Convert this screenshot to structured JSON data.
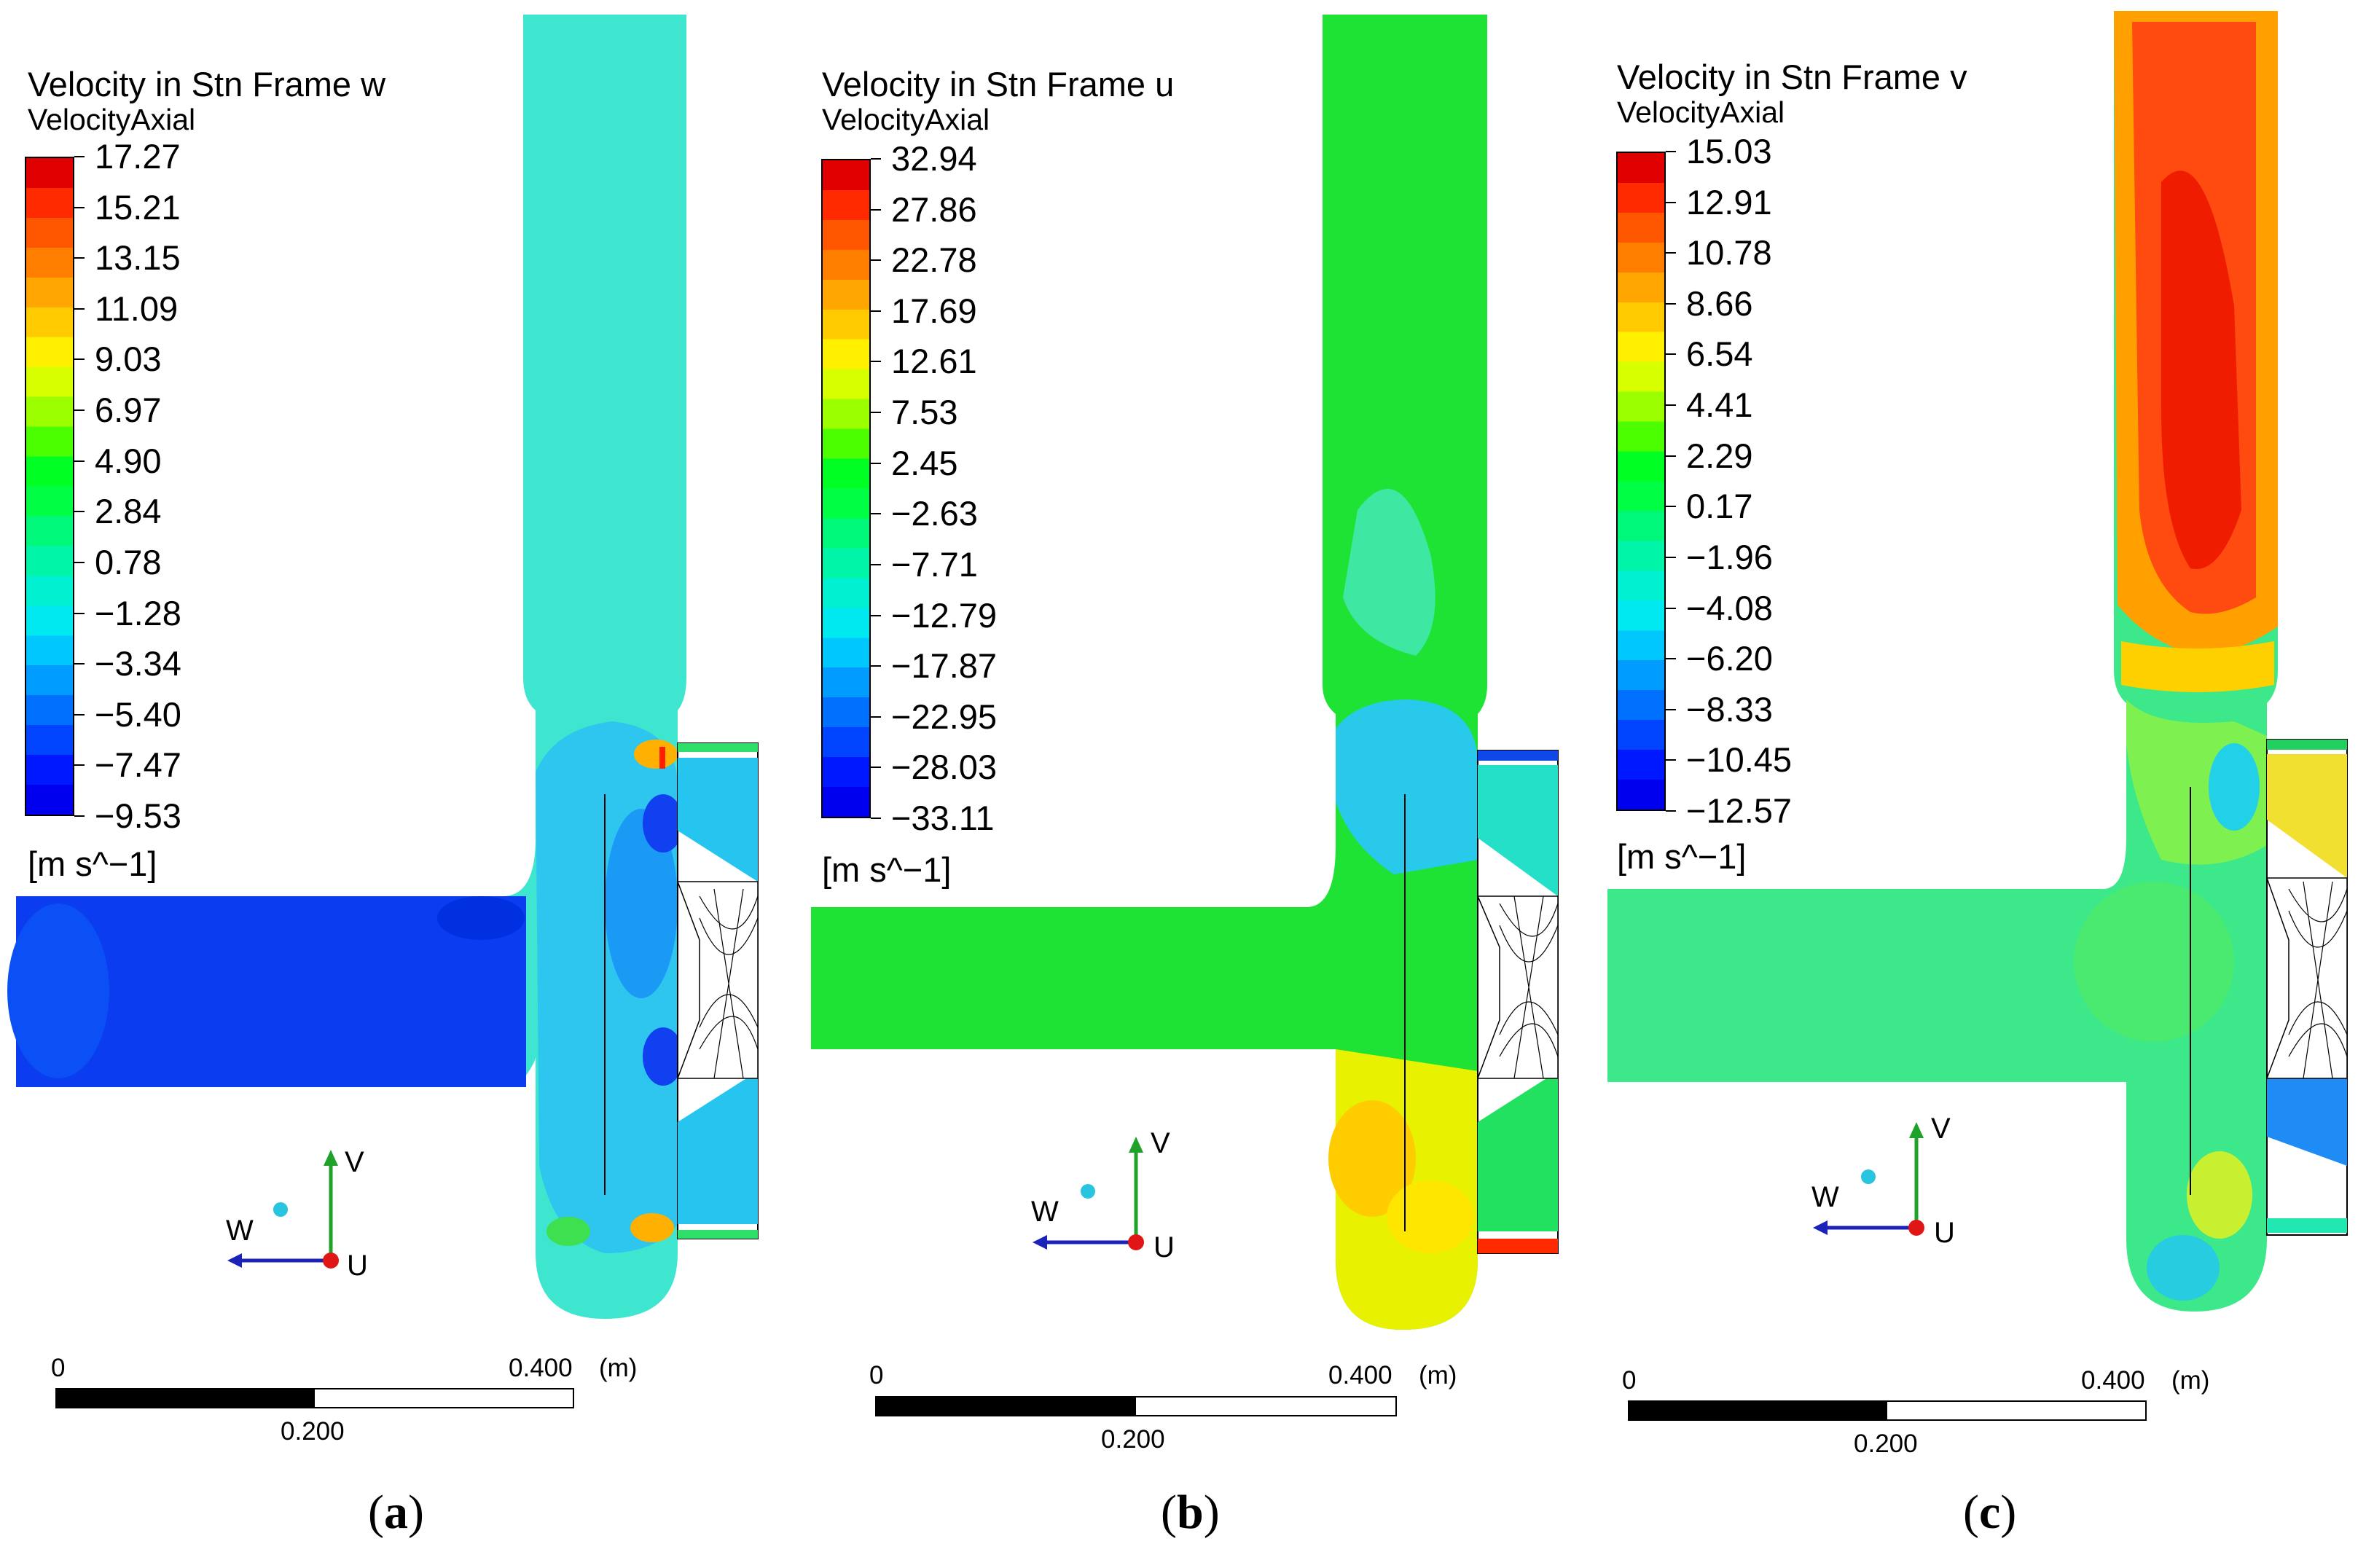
{
  "panels": [
    {
      "id": "a",
      "legend_title": "Velocity in Stn Frame w",
      "legend_subtitle": "VelocityAxial",
      "ticks": [
        "17.27",
        "15.21",
        "13.15",
        "11.09",
        "9.03",
        "6.97",
        "4.90",
        "2.84",
        "0.78",
        "−1.28",
        "−3.34",
        "−5.40",
        "−7.47",
        "−9.53"
      ],
      "units": "[m s^−1]",
      "scale": {
        "zero": "0",
        "mid": "0.200",
        "max": "0.400",
        "unit": "(m)"
      },
      "axes": {
        "v": "V",
        "w": "W",
        "u": "U"
      },
      "caption_open": "(",
      "caption_letter": "a",
      "caption_close": ")",
      "colors": {
        "inlet": "#0a3ff2",
        "field": "#33e8d8",
        "outlet": "#3ff0c8"
      }
    },
    {
      "id": "b",
      "legend_title": "Velocity in Stn Frame u",
      "legend_subtitle": "VelocityAxial",
      "ticks": [
        "32.94",
        "27.86",
        "22.78",
        "17.69",
        "12.61",
        "7.53",
        "2.45",
        "−2.63",
        "−7.71",
        "−12.79",
        "−17.87",
        "−22.95",
        "−28.03",
        "−33.11"
      ],
      "units": "[m s^−1]",
      "scale": {
        "zero": "0",
        "mid": "0.200",
        "max": "0.400",
        "unit": "(m)"
      },
      "axes": {
        "v": "V",
        "w": "W",
        "u": "U"
      },
      "caption_open": "(",
      "caption_letter": "b",
      "caption_close": ")",
      "colors": {
        "inlet": "#19e21c",
        "field": "#22e636",
        "outlet": "#1fe12a"
      }
    },
    {
      "id": "c",
      "legend_title": "Velocity in Stn Frame v",
      "legend_subtitle": "VelocityAxial",
      "ticks": [
        "15.03",
        "12.91",
        "10.78",
        "8.66",
        "6.54",
        "4.41",
        "2.29",
        "0.17",
        "−1.96",
        "−4.08",
        "−6.20",
        "−8.33",
        "−10.45",
        "−12.57"
      ],
      "units": "[m s^−1]",
      "scale": {
        "zero": "0",
        "mid": "0.200",
        "max": "0.400",
        "unit": "(m)"
      },
      "axes": {
        "v": "V",
        "w": "W",
        "u": "U"
      },
      "caption_open": "(",
      "caption_letter": "c",
      "caption_close": ")",
      "colors": {
        "inlet": "#2ee87a",
        "field": "#35e88c",
        "outlet": "#f26a10"
      }
    }
  ],
  "palette": [
    "#e10000",
    "#ff2a00",
    "#ff5600",
    "#ff7e00",
    "#ffa600",
    "#ffcb00",
    "#fff000",
    "#d8ff00",
    "#9cff00",
    "#4cff00",
    "#00ff22",
    "#00ff44",
    "#00f87a",
    "#00f5a8",
    "#00f0d2",
    "#00e8f0",
    "#00c8ff",
    "#009cff",
    "#0070ff",
    "#0044ff",
    "#0018ff",
    "#0000ee"
  ]
}
